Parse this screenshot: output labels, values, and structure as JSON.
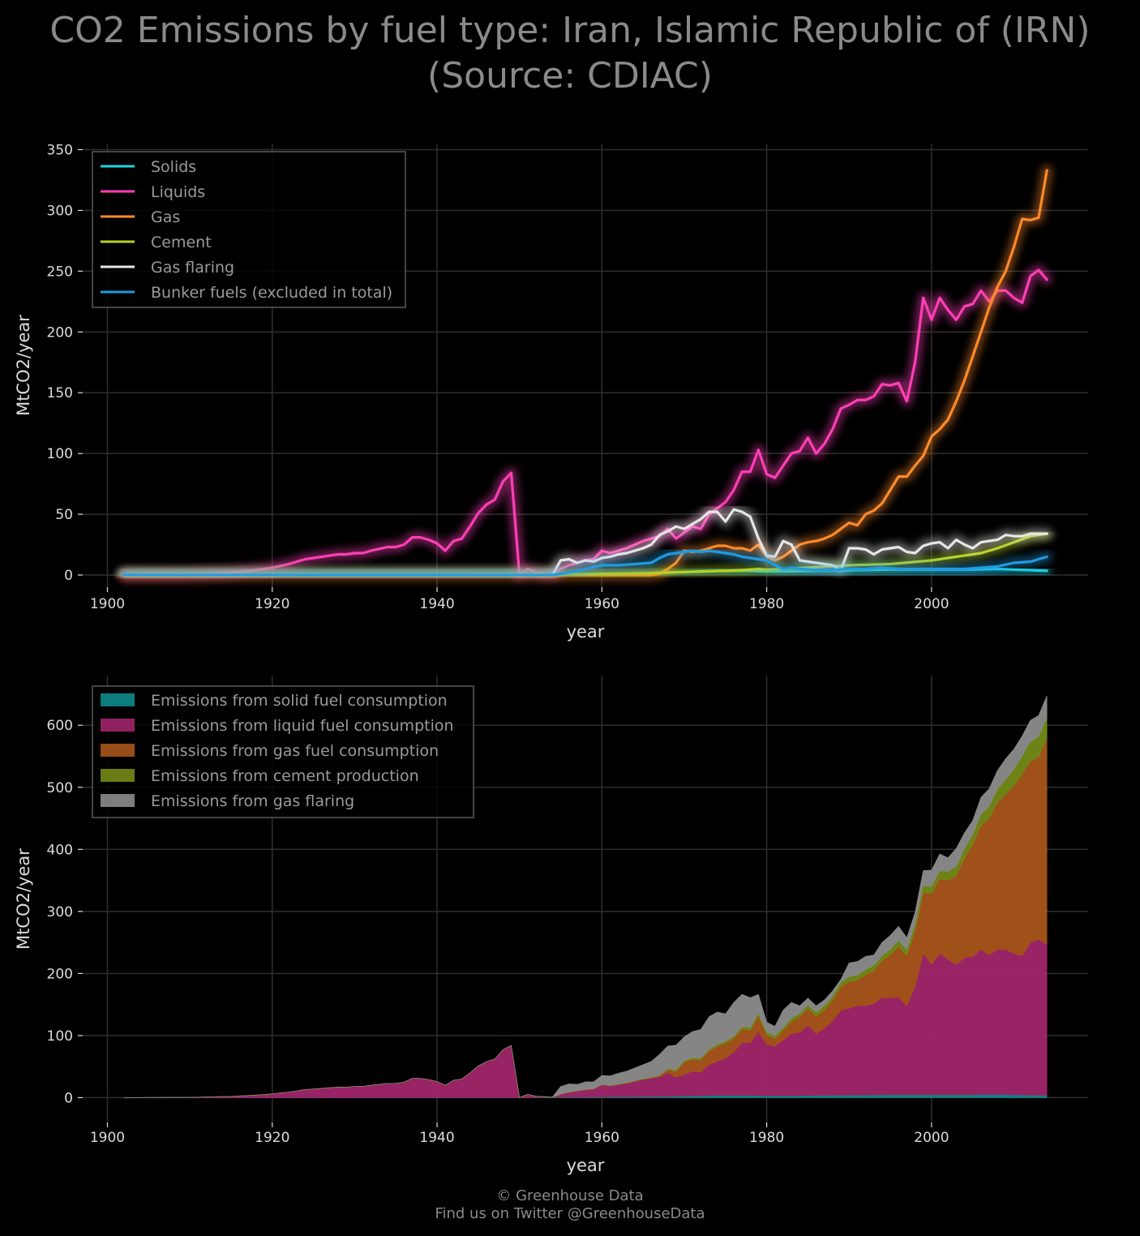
{
  "title": {
    "line1": "CO2 Emissions by fuel type: Iran, Islamic Republic of (IRN)",
    "line2": "(Source: CDIAC)"
  },
  "credit": {
    "line1": "© Greenhouse Data",
    "line2": "Find us on Twitter @GreenhouseData"
  },
  "chart_data": [
    {
      "type": "line",
      "xlabel": "year",
      "ylabel": "MtCO2/year",
      "xlim": [
        1897,
        2019
      ],
      "ylim": [
        -10,
        355
      ],
      "xticks": [
        1900,
        1920,
        1940,
        1960,
        1980,
        2000
      ],
      "yticks": [
        0,
        50,
        100,
        150,
        200,
        250,
        300,
        350
      ],
      "grid": true,
      "legend_position": "top-left",
      "series": [
        {
          "name": "Solids",
          "color": "#19d3e0",
          "x": [
            1902,
            1950,
            1955,
            1960,
            1965,
            1968,
            1970,
            1972,
            1974,
            1976,
            1978,
            1980,
            1983,
            1986,
            1990,
            1995,
            2000,
            2005,
            2008,
            2010,
            2012,
            2014
          ],
          "y": [
            0,
            0,
            0.5,
            1,
            1.5,
            2,
            2.5,
            3,
            3.5,
            3.5,
            3.5,
            3,
            3,
            3.5,
            4,
            4.5,
            4.5,
            4.5,
            5,
            4.5,
            4,
            3.5
          ]
        },
        {
          "name": "Liquids",
          "color": "#ff3eb5",
          "x": [
            1902,
            1910,
            1915,
            1918,
            1920,
            1922,
            1924,
            1926,
            1928,
            1929,
            1930,
            1931,
            1932,
            1934,
            1935,
            1936,
            1937,
            1938,
            1939,
            1940,
            1941,
            1942,
            1943,
            1944,
            1945,
            1946,
            1947,
            1948,
            1949,
            1950,
            1951,
            1952,
            1953,
            1954,
            1955,
            1956,
            1957,
            1958,
            1959,
            1960,
            1961,
            1962,
            1963,
            1964,
            1965,
            1966,
            1967,
            1968,
            1969,
            1970,
            1971,
            1972,
            1973,
            1974,
            1975,
            1976,
            1977,
            1978,
            1979,
            1980,
            1981,
            1982,
            1983,
            1984,
            1985,
            1986,
            1987,
            1988,
            1989,
            1990,
            1991,
            1992,
            1993,
            1994,
            1995,
            1996,
            1997,
            1998,
            1999,
            2000,
            2001,
            2002,
            2003,
            2004,
            2005,
            2006,
            2007,
            2008,
            2009,
            2010,
            2011,
            2012,
            2013,
            2014
          ],
          "y": [
            0,
            0.5,
            2,
            4,
            6,
            9,
            13,
            15,
            17,
            17,
            18,
            18,
            20,
            23,
            23,
            25,
            31,
            31,
            29,
            26,
            20,
            28,
            30,
            40,
            51,
            58,
            62,
            77,
            84,
            0,
            5,
            2,
            1,
            0,
            5,
            8,
            10,
            12,
            13,
            20,
            18,
            20,
            22,
            25,
            28,
            30,
            32,
            38,
            30,
            35,
            40,
            38,
            50,
            55,
            60,
            70,
            85,
            85,
            103,
            83,
            80,
            90,
            100,
            102,
            113,
            100,
            108,
            120,
            137,
            140,
            144,
            144,
            147,
            157,
            156,
            158,
            143,
            175,
            228,
            210,
            228,
            218,
            210,
            221,
            223,
            234,
            225,
            234,
            234,
            228,
            224,
            246,
            251,
            243
          ]
        },
        {
          "name": "Gas",
          "color": "#ff8a2a",
          "x": [
            1902,
            1960,
            1966,
            1967,
            1968,
            1969,
            1970,
            1971,
            1972,
            1973,
            1974,
            1975,
            1976,
            1977,
            1978,
            1979,
            1980,
            1981,
            1982,
            1983,
            1984,
            1985,
            1986,
            1987,
            1988,
            1989,
            1990,
            1991,
            1992,
            1993,
            1994,
            1995,
            1996,
            1997,
            1998,
            1999,
            2000,
            2001,
            2002,
            2003,
            2004,
            2005,
            2006,
            2007,
            2008,
            2009,
            2010,
            2011,
            2012,
            2013,
            2014
          ],
          "y": [
            0,
            0,
            0,
            1,
            5,
            10,
            20,
            19,
            20,
            22,
            24,
            24,
            22,
            22,
            20,
            25,
            15,
            12,
            15,
            20,
            25,
            27,
            28,
            30,
            33,
            38,
            43,
            41,
            50,
            53,
            59,
            70,
            81,
            81,
            90,
            98,
            114,
            120,
            128,
            143,
            160,
            180,
            200,
            220,
            237,
            250,
            270,
            293,
            292,
            294,
            333
          ]
        },
        {
          "name": "Cement",
          "color": "#b7d022",
          "x": [
            1902,
            1940,
            1950,
            1960,
            1965,
            1970,
            1975,
            1977,
            1979,
            1980,
            1985,
            1990,
            1995,
            2000,
            2003,
            2006,
            2008,
            2010,
            2012,
            2014
          ],
          "y": [
            0,
            0,
            0.2,
            0.8,
            1.5,
            2.5,
            3.5,
            4,
            5,
            4.5,
            6,
            8,
            9,
            12,
            15,
            18,
            22,
            27,
            32,
            34
          ]
        },
        {
          "name": "Gas flaring",
          "color": "#e6e6e6",
          "x": [
            1902,
            1954,
            1955,
            1956,
            1957,
            1958,
            1959,
            1960,
            1961,
            1962,
            1963,
            1964,
            1965,
            1966,
            1967,
            1968,
            1969,
            1970,
            1971,
            1972,
            1973,
            1974,
            1975,
            1976,
            1977,
            1978,
            1979,
            1980,
            1981,
            1982,
            1983,
            1984,
            1985,
            1986,
            1987,
            1988,
            1989,
            1990,
            1991,
            1992,
            1993,
            1994,
            1995,
            1996,
            1997,
            1998,
            1999,
            2000,
            2001,
            2002,
            2003,
            2004,
            2005,
            2006,
            2007,
            2008,
            2009,
            2010,
            2011,
            2012,
            2013,
            2014
          ],
          "y": [
            0,
            0,
            12,
            13,
            10,
            12,
            11,
            14,
            15,
            17,
            18,
            20,
            22,
            25,
            33,
            36,
            40,
            38,
            42,
            46,
            52,
            52,
            44,
            54,
            52,
            48,
            30,
            16,
            15,
            28,
            25,
            12,
            11,
            10,
            9,
            8,
            4,
            22,
            22,
            21,
            17,
            21,
            22,
            23,
            19,
            18,
            24,
            26,
            27,
            22,
            29,
            25,
            22,
            27,
            28,
            29,
            33,
            32,
            32,
            34,
            34,
            34
          ]
        },
        {
          "name": "Bunker fuels (excluded in total)",
          "color": "#1f9be0",
          "x": [
            1902,
            1954,
            1956,
            1958,
            1960,
            1962,
            1964,
            1966,
            1967,
            1968,
            1969,
            1970,
            1971,
            1972,
            1973,
            1974,
            1975,
            1976,
            1977,
            1978,
            1979,
            1980,
            1981,
            1982,
            1983,
            1984,
            1986,
            1988,
            1990,
            1992,
            1994,
            1996,
            1998,
            2000,
            2002,
            2004,
            2006,
            2008,
            2010,
            2012,
            2013,
            2014
          ],
          "y": [
            0,
            0,
            2,
            5,
            8,
            8,
            9,
            10,
            14,
            17,
            18,
            19,
            20,
            19,
            20,
            19,
            18,
            17,
            15,
            14,
            13,
            12,
            8,
            5,
            6,
            5,
            4,
            4,
            5,
            5,
            6,
            5,
            5,
            5,
            5,
            5,
            6,
            7,
            10,
            11,
            13,
            15
          ]
        }
      ]
    },
    {
      "type": "area",
      "stacked": true,
      "xlabel": "year",
      "ylabel": "MtCO2/year",
      "xlim": [
        1897,
        2019
      ],
      "ylim": [
        -40,
        680
      ],
      "xticks": [
        1900,
        1920,
        1940,
        1960,
        1980,
        2000
      ],
      "yticks": [
        0,
        100,
        200,
        300,
        400,
        500,
        600
      ],
      "grid": true,
      "legend_position": "top-left",
      "series": [
        {
          "name": "Emissions from solid fuel consumption",
          "color": "#0d8a8c",
          "ref": 0
        },
        {
          "name": "Emissions from liquid fuel consumption",
          "color": "#a0256a",
          "ref": 1
        },
        {
          "name": "Emissions from gas fuel consumption",
          "color": "#a9541a",
          "ref": 2
        },
        {
          "name": "Emissions from cement production",
          "color": "#748a17",
          "ref": 3
        },
        {
          "name": "Emissions from gas flaring",
          "color": "#8c8c8c",
          "ref": 4
        }
      ]
    }
  ]
}
